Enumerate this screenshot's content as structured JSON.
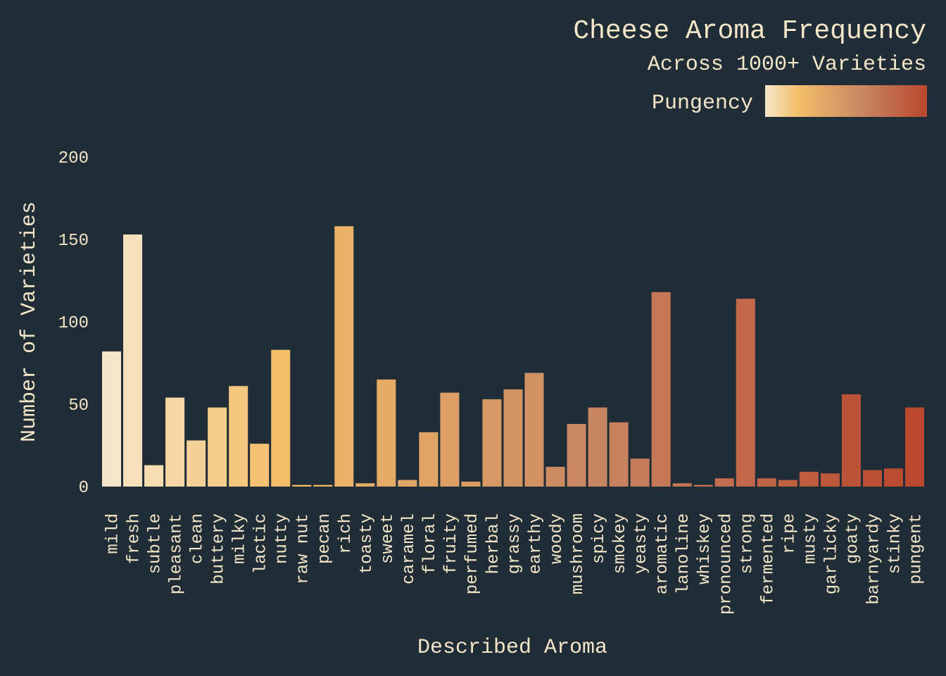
{
  "chart_data": {
    "type": "bar",
    "title": "Cheese Aroma Frequency",
    "subtitle": "Across 1000+ Varieties",
    "legend_title": "Pungency",
    "xlabel": "Described Aroma",
    "ylabel": "Number of Varieties",
    "ylim": [
      0,
      200
    ],
    "yticks": [
      0,
      50,
      100,
      150,
      200
    ],
    "grid": false,
    "legend_position": "top-right",
    "colors": {
      "background": "#202d37",
      "text": "#f3e6c9",
      "gradient": [
        "#f5e6cb",
        "#f4bf6a",
        "#c88662",
        "#b9482f"
      ]
    },
    "categories": [
      "mild",
      "fresh",
      "subtle",
      "pleasant",
      "clean",
      "buttery",
      "milky",
      "lactic",
      "nutty",
      "raw nut",
      "pecan",
      "rich",
      "toasty",
      "sweet",
      "caramel",
      "floral",
      "fruity",
      "perfumed",
      "herbal",
      "grassy",
      "earthy",
      "woody",
      "mushroom",
      "spicy",
      "smokey",
      "yeasty",
      "aromatic",
      "lanoline",
      "whiskey",
      "pronounced",
      "strong",
      "fermented",
      "ripe",
      "musty",
      "garlicky",
      "goaty",
      "barnyardy",
      "stinky",
      "pungent"
    ],
    "values": [
      82,
      153,
      13,
      54,
      28,
      48,
      61,
      26,
      83,
      1,
      1,
      158,
      2,
      65,
      4,
      33,
      57,
      3,
      53,
      59,
      69,
      12,
      38,
      48,
      39,
      17,
      118,
      2,
      1,
      5,
      114,
      5,
      4,
      9,
      8,
      56,
      10,
      11,
      48
    ]
  }
}
